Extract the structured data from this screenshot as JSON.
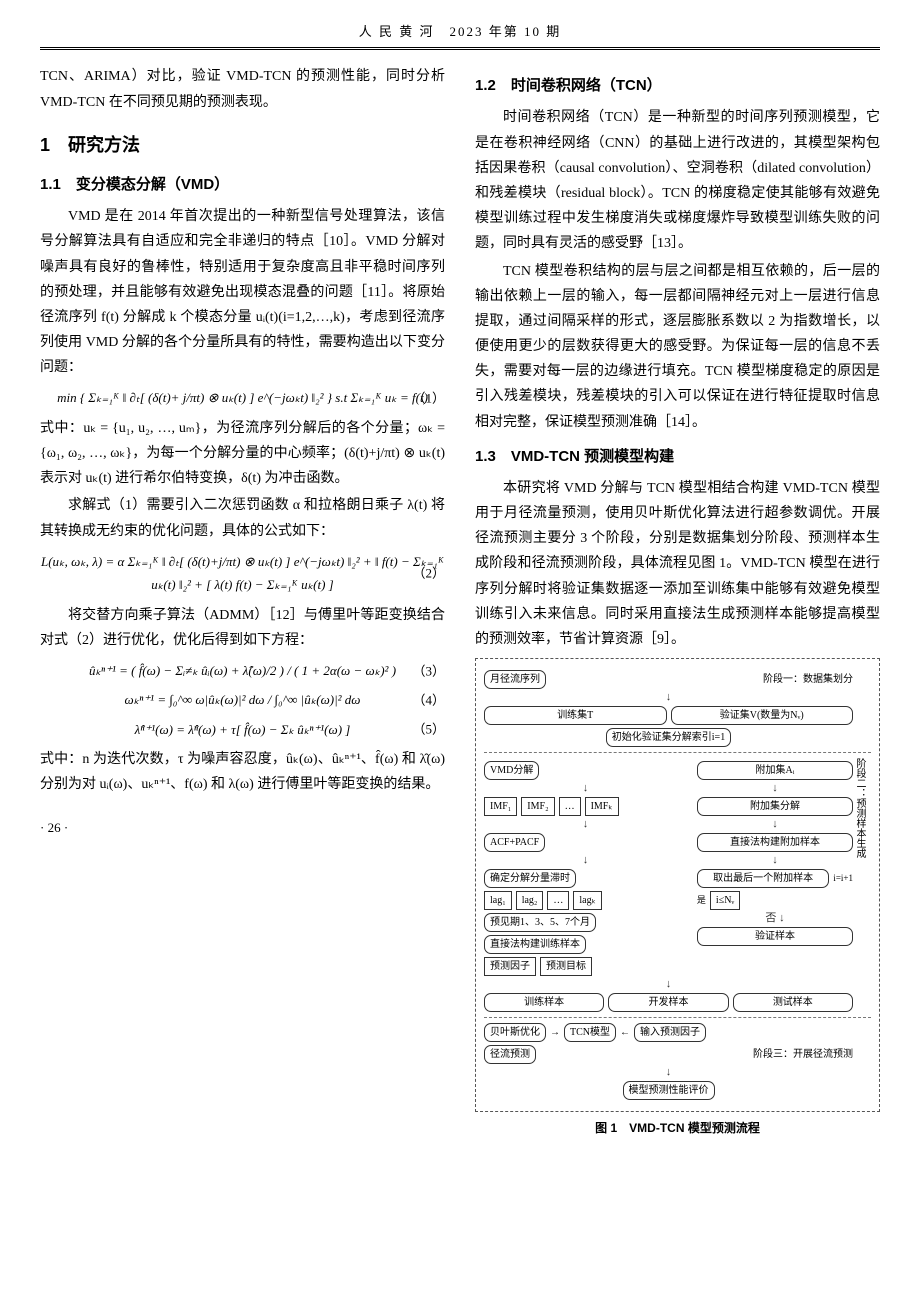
{
  "header": "人 民 黄 河　2023 年第 10 期",
  "col1": {
    "intro": "TCN、ARIMA）对比，验证 VMD-TCN 的预测性能，同时分析 VMD-TCN 在不同预见期的预测表现。",
    "h1": "1　研究方法",
    "h2_1": "1.1　变分模态分解（VMD）",
    "p1": "VMD 是在 2014 年首次提出的一种新型信号处理算法，该信号分解算法具有自适应和完全非递归的特点［10］。VMD 分解对噪声具有良好的鲁棒性，特别适用于复杂度高且非平稳时间序列的预处理，并且能够有效避免出现模态混叠的问题［11］。将原始径流序列 f(t) 分解成 k 个模态分量 uᵢ(t)(i=1,2,…,k)，考虑到径流序列使用 VMD 分解的各个分量所具有的特性，需要构造出以下变分问题：",
    "eq1": "min { Σₖ₌₁ᴷ ‖ ∂ₜ[ (δ(t)+ j/πt) ⊗ uₖ(t) ] e^(−jωₖt) ‖₂² }   s.t Σₖ₌₁ᴷ uₖ = f(t)",
    "eq1_num": "（1）",
    "p2": "式中：uₖ = {u₁, u₂, …, uₘ}，为径流序列分解后的各个分量；ωₖ = {ω₁, ω₂, …, ωₖ}，为每一个分解分量的中心频率；(δ(t)+j/πt) ⊗ uₖ(t) 表示对 uₖ(t) 进行希尔伯特变换，δ(t) 为冲击函数。",
    "p3": "求解式（1）需要引入二次惩罚函数 α 和拉格朗日乘子 λ(t) 将其转换成无约束的优化问题，具体的公式如下：",
    "eq2": "L(uₖ, ωₖ, λ) = α Σₖ₌₁ᴷ ‖ ∂ₜ[ (δ(t)+j/πt) ⊗ uₖ(t) ] e^(−jωₖt) ‖₂² + ‖ f(t) − Σₖ₌₁ᴷ uₖ(t) ‖₂² + [ λ(t) f(t) − Σₖ₌₁ᴷ uₖ(t) ]",
    "eq2_num": "（2）",
    "p4": "将交替方向乘子算法（ADMM）［12］与傅里叶等距变换结合对式（2）进行优化，优化后得到如下方程：",
    "eq3": "ûₖⁿ⁺¹ = ( f̂(ω) − Σᵢ≠ₖ ûᵢ(ω) + λ̂(ω)/2 ) / ( 1 + 2α(ω − ωₖ)² )",
    "eq3_num": "（3）",
    "eq4": "ωₖⁿ⁺¹ = ∫₀^∞ ω|ûₖ(ω)|² dω / ∫₀^∞ |ûₖ(ω)|² dω",
    "eq4_num": "（4）",
    "eq5": "λ̂ⁿ⁺¹(ω) = λ̂ⁿ(ω) + τ[ f̂(ω) − Σₖ ûₖⁿ⁺¹(ω) ]",
    "eq5_num": "（5）",
    "p5": "式中：n 为迭代次数，τ 为噪声容忍度，ûₖ(ω)、ûₖⁿ⁺¹、f̂(ω) 和 λ̂(ω) 分别为对 uᵢ(ω)、uₖⁿ⁺¹、f(ω) 和 λ(ω) 进行傅里叶等距变换的结果。"
  },
  "col2": {
    "h2_2": "1.2　时间卷积网络（TCN）",
    "p1": "时间卷积网络（TCN）是一种新型的时间序列预测模型，它是在卷积神经网络（CNN）的基础上进行改进的，其模型架构包括因果卷积（causal convolution）、空洞卷积（dilated convolution）和残差模块（residual block）。TCN 的梯度稳定使其能够有效避免模型训练过程中发生梯度消失或梯度爆炸导致模型训练失败的问题，同时具有灵活的感受野［13］。",
    "p2": "TCN 模型卷积结构的层与层之间都是相互依赖的，后一层的输出依赖上一层的输入，每一层都间隔神经元对上一层进行信息提取，通过间隔采样的形式，逐层膨胀系数以 2 为指数增长，以便使用更少的层数获得更大的感受野。为保证每一层的信息不丢失，需要对每一层的边缘进行填充。TCN 模型梯度稳定的原因是引入残差模块，残差模块的引入可以保证在进行特征提取时信息相对完整，保证模型预测准确［14］。",
    "h2_3": "1.3　VMD-TCN 预测模型构建",
    "p3": "本研究将 VMD 分解与 TCN 模型相结合构建 VMD-TCN 模型用于月径流量预测，使用贝叶斯优化算法进行超参数调优。开展径流预测主要分 3 个阶段，分别是数据集划分阶段、预测样本生成阶段和径流预测阶段，具体流程见图 1。VMD-TCN 模型在进行序列分解时将验证集数据逐一添加至训练集中能够有效避免模型训练引入未来信息。同时采用直接法生成预测样本能够提高模型的预测效率，节省计算资源［9］。",
    "fig": {
      "title_top": "月径流序列",
      "stage1_label": "阶段一：数据集划分",
      "train": "训练集T",
      "valid": "验证集V(数量为Nᵥ)",
      "init": "初始化验证集分解索引i=1",
      "vmd": "VMD分解",
      "append": "附加集Aᵢ",
      "imf1": "IMF₁",
      "imf2": "IMF₂",
      "dots": "…",
      "imfk": "IMFₖ",
      "append_decomp": "附加集分解",
      "acf": "ACF+PACF",
      "stage2_label": "阶段二：预测样本生成",
      "lag_determine": "确定分解分量滞时",
      "direct_build": "直接法构建附加样本",
      "lag1": "lag₁",
      "lag2": "lag₂",
      "lagk": "lagₖ",
      "horizon": "预见期1、3、5、7个月",
      "direct_train": "直接法构建训练样本",
      "extract": "取出最后一个附加样本",
      "ilep": "i≤Nᵥ",
      "iinc": "i=i+1",
      "yes": "是",
      "no": "否",
      "predictor": "预测因子",
      "target": "预测目标",
      "valid_sample": "验证样本",
      "train_sample": "训练样本",
      "dev_sample": "开发样本",
      "test_sample": "测试样本",
      "bayes": "贝叶斯优化",
      "tcn": "TCN模型",
      "inpred": "输入预测因子",
      "stage3_label": "阶段三：开展径流预测",
      "runoff": "径流预测",
      "eval": "模型预测性能评价",
      "caption": "图 1　VMD-TCN 模型预测流程"
    }
  },
  "pagenum": "· 26 ·"
}
